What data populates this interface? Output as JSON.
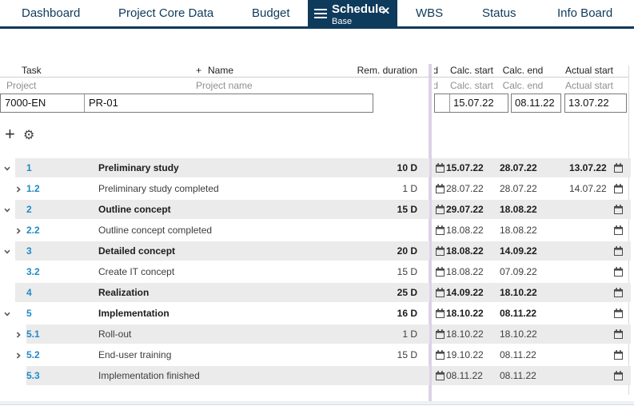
{
  "tabs": [
    {
      "label": "Dashboard"
    },
    {
      "label": "Project Core Data"
    },
    {
      "label": "Budget"
    },
    {
      "label": "Schedule",
      "sublabel": "Base",
      "active": true
    },
    {
      "label": "WBS"
    },
    {
      "label": "Status"
    },
    {
      "label": "Info Board"
    }
  ],
  "icons": {
    "close": "✕",
    "add": "+",
    "settings": "⚙",
    "name_plus": "+"
  },
  "columns": {
    "task": "Task",
    "name": "Name",
    "rem_duration": "Rem. duration",
    "clipped_col": "d",
    "calc_start": "Calc. start",
    "calc_end": "Calc. end",
    "actual_start": "Actual start"
  },
  "filters": {
    "project": "Project",
    "project_name": "Project name",
    "clipped_col": "d",
    "calc_start": "Calc. start",
    "calc_end": "Calc. end",
    "actual_start": "Actual start"
  },
  "project": {
    "id": "7000-EN",
    "name": "PR-01",
    "calc_start": "15.07.22",
    "calc_end": "08.11.22",
    "actual_start": "13.07.22"
  },
  "tasks": [
    {
      "number": "1",
      "name": "Preliminary study",
      "level": 1,
      "expand": "open",
      "duration": "10 D",
      "calc_start": "15.07.22",
      "calc_end": "28.07.22",
      "actual_start": "13.07.22"
    },
    {
      "number": "1.2",
      "name": "Preliminary study completed",
      "level": 2,
      "expand": "closed",
      "duration": "1 D",
      "calc_start": "28.07.22",
      "calc_end": "28.07.22",
      "actual_start": "14.07.22"
    },
    {
      "number": "2",
      "name": "Outline concept",
      "level": 1,
      "expand": "open",
      "duration": "15 D",
      "calc_start": "29.07.22",
      "calc_end": "18.08.22",
      "actual_start": ""
    },
    {
      "number": "2.2",
      "name": "Outline concept completed",
      "level": 2,
      "expand": "closed",
      "duration": "",
      "calc_start": "18.08.22",
      "calc_end": "18.08.22",
      "actual_start": ""
    },
    {
      "number": "3",
      "name": "Detailed concept",
      "level": 1,
      "expand": "open",
      "duration": "20 D",
      "calc_start": "18.08.22",
      "calc_end": "14.09.22",
      "actual_start": ""
    },
    {
      "number": "3.2",
      "name": "Create IT concept",
      "level": 2,
      "expand": null,
      "duration": "15 D",
      "calc_start": "18.08.22",
      "calc_end": "07.09.22",
      "actual_start": ""
    },
    {
      "number": "4",
      "name": "Realization",
      "level": 1,
      "expand": null,
      "duration": "25 D",
      "calc_start": "14.09.22",
      "calc_end": "18.10.22",
      "actual_start": ""
    },
    {
      "number": "5",
      "name": "Implementation",
      "level": 1,
      "expand": "open",
      "duration": "16 D",
      "calc_start": "18.10.22",
      "calc_end": "08.11.22",
      "actual_start": ""
    },
    {
      "number": "5.1",
      "name": "Roll-out",
      "level": 2,
      "expand": "closed",
      "duration": "1 D",
      "calc_start": "18.10.22",
      "calc_end": "18.10.22",
      "actual_start": ""
    },
    {
      "number": "5.2",
      "name": "End-user training",
      "level": 2,
      "expand": "closed",
      "duration": "15 D",
      "calc_start": "19.10.22",
      "calc_end": "08.11.22",
      "actual_start": ""
    },
    {
      "number": "5.3",
      "name": "Implementation finished",
      "level": 2,
      "expand": null,
      "duration": "",
      "calc_start": "08.11.22",
      "calc_end": "08.11.22",
      "actual_start": ""
    }
  ],
  "colors": {
    "accent_navy": "#0e3a5c",
    "wbs_blue": "#1f8ac9",
    "row_stripe": "#ebebeb",
    "split_line": "#ddd2e8"
  }
}
